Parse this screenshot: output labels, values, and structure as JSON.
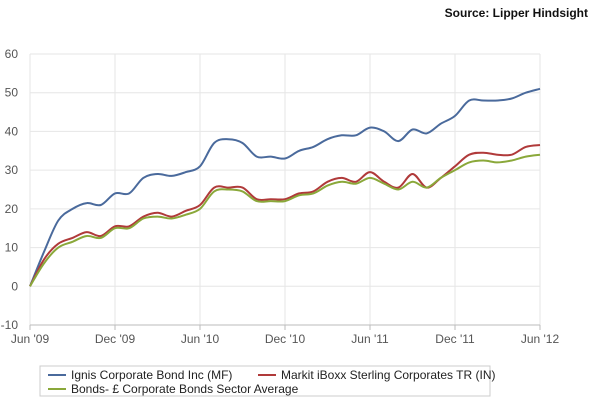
{
  "source": "Source: Lipper Hindsight",
  "colors": {
    "ignis": "#4a6a9c",
    "markit": "#b03a3a",
    "bonds": "#8aa83a",
    "grid": "#e6e6e6",
    "axis": "#bbbbbb"
  },
  "chart_data": {
    "type": "line",
    "title": "",
    "xlabel": "",
    "ylabel": "",
    "ylim": [
      -10,
      60
    ],
    "yticks": [
      -10,
      0,
      10,
      20,
      30,
      40,
      50,
      60
    ],
    "xlim": [
      0,
      36
    ],
    "xticks": [
      {
        "label": "Jun '09",
        "x": 0
      },
      {
        "label": "Dec '09",
        "x": 6
      },
      {
        "label": "Jun '10",
        "x": 12
      },
      {
        "label": "Dec '10",
        "x": 18
      },
      {
        "label": "Jun '11",
        "x": 24
      },
      {
        "label": "Dec '11",
        "x": 30
      },
      {
        "label": "Jun '12",
        "x": 36
      }
    ],
    "grid": true,
    "legend": "bottom",
    "series": [
      {
        "name": "Ignis Corporate Bond Inc (MF)",
        "color": "#4a6a9c",
        "x": [
          0,
          1,
          2,
          3,
          4,
          5,
          6,
          7,
          8,
          9,
          10,
          11,
          12,
          13,
          14,
          15,
          16,
          17,
          18,
          19,
          20,
          21,
          22,
          23,
          24,
          25,
          26,
          27,
          28,
          29,
          30,
          31,
          32,
          33,
          34,
          35,
          36
        ],
        "values": [
          0,
          9,
          17,
          20,
          21.5,
          21,
          24,
          24,
          28,
          29,
          28.5,
          29.5,
          31,
          37,
          38,
          37,
          33.5,
          33.5,
          33,
          35,
          36,
          38,
          39,
          39,
          41,
          40,
          37.5,
          40.5,
          39.5,
          42,
          44,
          48,
          48,
          48,
          48.5,
          50,
          51
        ]
      },
      {
        "name": "Markit iBoxx Sterling Corporates TR (IN)",
        "color": "#b03a3a",
        "x": [
          0,
          1,
          2,
          3,
          4,
          5,
          6,
          7,
          8,
          9,
          10,
          11,
          12,
          13,
          14,
          15,
          16,
          17,
          18,
          19,
          20,
          21,
          22,
          23,
          24,
          25,
          26,
          27,
          28,
          29,
          30,
          31,
          32,
          33,
          34,
          35,
          36
        ],
        "values": [
          0,
          7,
          11,
          12.5,
          14,
          13,
          15.5,
          15.5,
          18,
          19,
          18,
          19.5,
          21,
          25.5,
          25.5,
          25.5,
          22.5,
          22.5,
          22.5,
          24,
          24.5,
          27,
          28,
          27,
          29.5,
          27,
          25.5,
          29,
          25.5,
          28,
          31,
          34,
          34.5,
          34,
          34,
          36,
          36.5
        ]
      },
      {
        "name": "Bonds- £ Corporate Bonds Sector Average",
        "color": "#8aa83a",
        "x": [
          0,
          1,
          2,
          3,
          4,
          5,
          6,
          7,
          8,
          9,
          10,
          11,
          12,
          13,
          14,
          15,
          16,
          17,
          18,
          19,
          20,
          21,
          22,
          23,
          24,
          25,
          26,
          27,
          28,
          29,
          30,
          31,
          32,
          33,
          34,
          35,
          36
        ],
        "values": [
          0,
          6,
          10,
          11.5,
          13,
          12.5,
          15,
          15,
          17.5,
          18,
          17.5,
          18.5,
          20,
          24.5,
          25,
          24.5,
          22,
          22,
          22,
          23.5,
          24,
          26,
          27,
          26.5,
          28,
          26.5,
          25,
          27,
          25.5,
          28,
          30,
          32,
          32.5,
          32,
          32.5,
          33.5,
          34
        ]
      }
    ]
  }
}
